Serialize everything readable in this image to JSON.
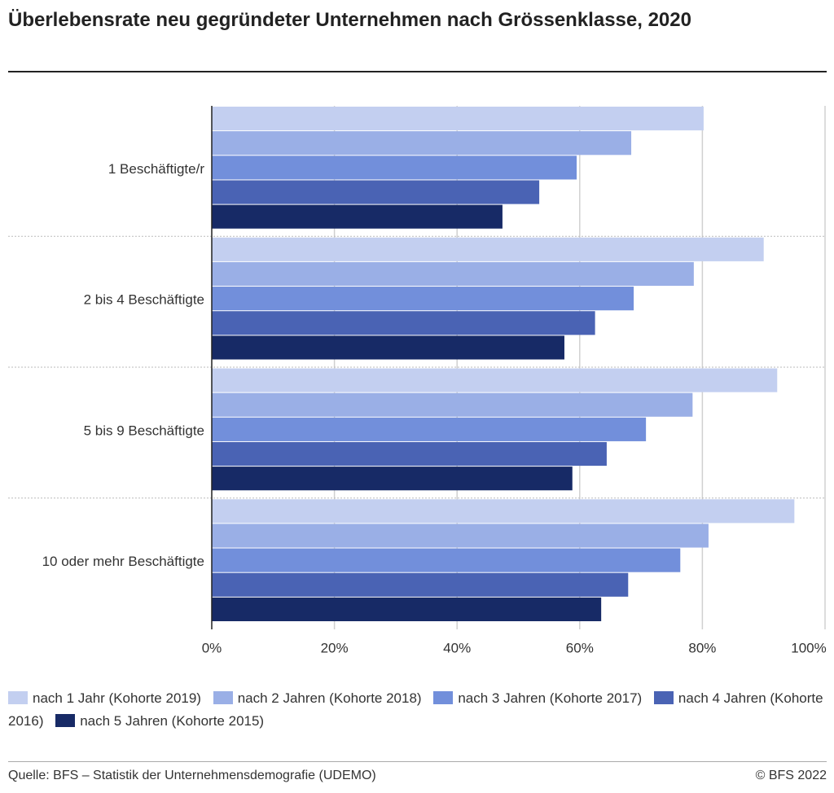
{
  "chart_data": {
    "type": "bar",
    "orientation": "horizontal",
    "title": "Überlebensrate neu gegründeter Unternehmen nach Grössenklasse, 2020",
    "categories": [
      "1 Beschäftigte/r",
      "2 bis 4 Beschäftigte",
      "5 bis 9 Beschäftigte",
      "10 oder mehr Beschäftigte"
    ],
    "series": [
      {
        "name": "nach 1 Jahr (Kohorte 2019)",
        "color": "#c3cff0",
        "values": [
          80.2,
          90.0,
          92.2,
          95.0
        ]
      },
      {
        "name": "nach 2 Jahren (Kohorte 2018)",
        "color": "#9aafe6",
        "values": [
          68.4,
          78.6,
          78.4,
          81.0
        ]
      },
      {
        "name": "nach 3 Jahren (Kohorte 2017)",
        "color": "#728fdb",
        "values": [
          59.5,
          68.8,
          70.8,
          76.4
        ]
      },
      {
        "name": "nach 4 Jahren (Kohorte 2016)",
        "color": "#4a63b4",
        "values": [
          53.4,
          62.5,
          64.4,
          67.9
        ]
      },
      {
        "name": "nach 5 Jahren (Kohorte 2015)",
        "color": "#172a66",
        "values": [
          47.4,
          57.5,
          58.8,
          63.5
        ]
      }
    ],
    "xlim": [
      0,
      100
    ],
    "xticks": [
      {
        "value": 0,
        "label": "0%"
      },
      {
        "value": 20,
        "label": "20%"
      },
      {
        "value": 40,
        "label": "40%"
      },
      {
        "value": 60,
        "label": "60%"
      },
      {
        "value": 80,
        "label": "80%"
      },
      {
        "value": 100,
        "label": "100%"
      }
    ],
    "grid": true,
    "source": "Quelle: BFS – Statistik der Unternehmensdemografie (UDEMO)",
    "copyright": "© BFS 2022"
  }
}
